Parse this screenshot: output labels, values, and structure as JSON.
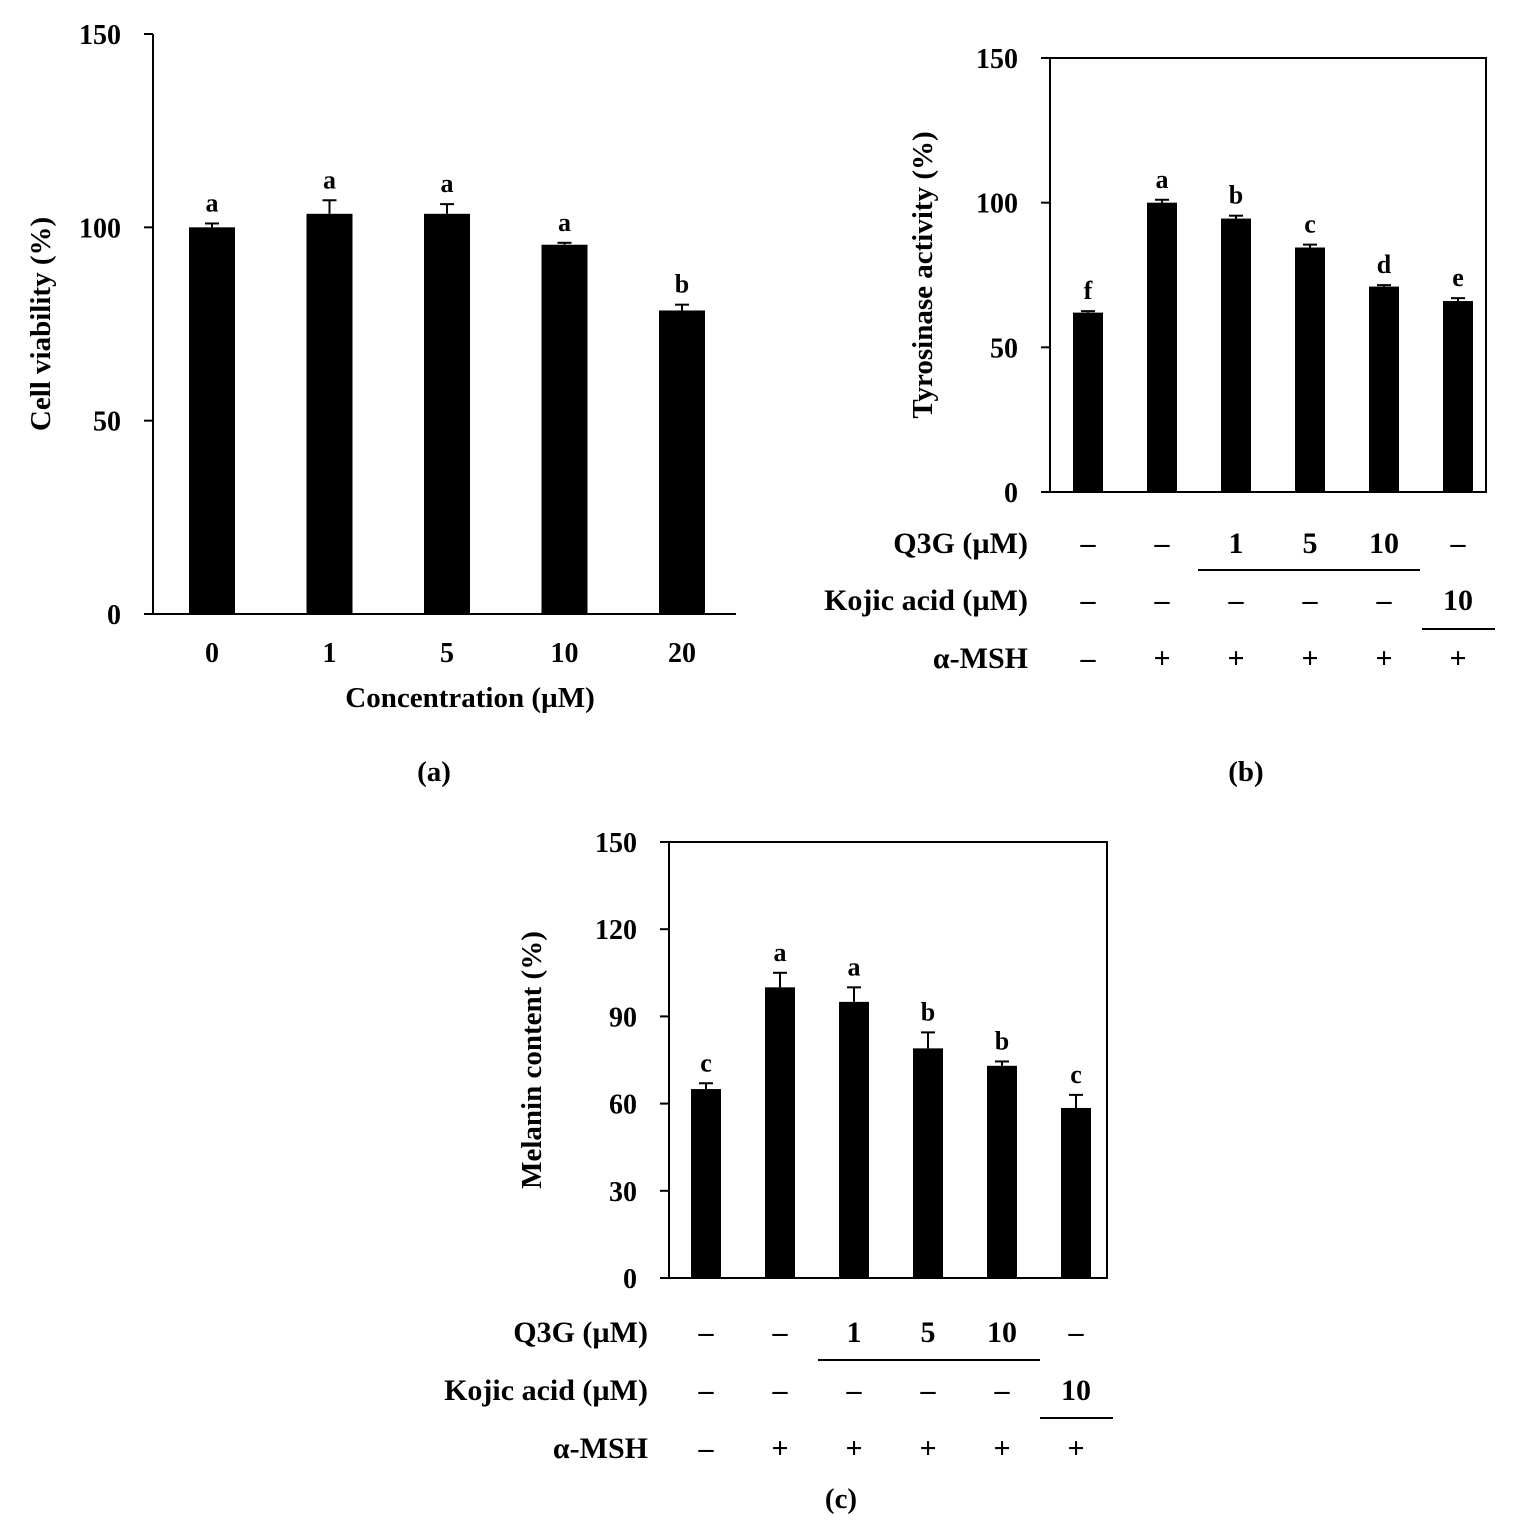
{
  "colors": {
    "bar": "#000000",
    "axis": "#000000",
    "background": "#ffffff"
  },
  "chart_data": [
    {
      "id": "a",
      "type": "bar",
      "panel_label": "(a)",
      "xlabel": "Concentration (µM)",
      "ylabel": "Cell viability (%)",
      "ylim": [
        0,
        150
      ],
      "yticks": [
        "0",
        "50",
        "100",
        "150"
      ],
      "categories": [
        "0",
        "1",
        "5",
        "10",
        "20"
      ],
      "values": [
        100,
        103.5,
        103.5,
        95.5,
        78.5
      ],
      "errors": [
        1,
        3.5,
        2.5,
        0.5,
        1.5
      ],
      "significance": [
        "a",
        "a",
        "a",
        "a",
        "b"
      ],
      "grid": false,
      "box": false
    },
    {
      "id": "b",
      "type": "bar",
      "panel_label": "(b)",
      "xlabel": "",
      "ylabel": "Tyrosinase activity (%)",
      "ylim": [
        0,
        150
      ],
      "yticks": [
        "0",
        "50",
        "100",
        "150"
      ],
      "values": [
        62,
        100,
        94.5,
        84.5,
        71,
        66
      ],
      "errors": [
        0.5,
        1,
        1,
        1,
        0.5,
        1
      ],
      "significance": [
        "f",
        "a",
        "b",
        "c",
        "d",
        "e"
      ],
      "grid": false,
      "box": true,
      "conditions": {
        "rows": [
          {
            "label": "Q3G (µM)",
            "cells": [
              "–",
              "–",
              "1",
              "5",
              "10",
              "–"
            ]
          },
          {
            "label": "Kojic acid (µM)",
            "cells": [
              "–",
              "–",
              "–",
              "–",
              "–",
              "10"
            ]
          },
          {
            "label": "α-MSH",
            "cells": [
              "–",
              "+",
              "+",
              "+",
              "+",
              "+"
            ]
          }
        ]
      }
    },
    {
      "id": "c",
      "type": "bar",
      "panel_label": "(c)",
      "xlabel": "",
      "ylabel": "Melanin content (%)",
      "ylim": [
        0,
        150
      ],
      "yticks": [
        "0",
        "30",
        "60",
        "90",
        "120",
        "150"
      ],
      "values": [
        65,
        100,
        95,
        79,
        73,
        58.5
      ],
      "errors": [
        2,
        5,
        5,
        5.5,
        1.5,
        4.5
      ],
      "significance": [
        "c",
        "a",
        "a",
        "b",
        "b",
        "c"
      ],
      "grid": false,
      "box": true,
      "conditions": {
        "rows": [
          {
            "label": "Q3G (µM)",
            "cells": [
              "–",
              "–",
              "1",
              "5",
              "10",
              "–"
            ]
          },
          {
            "label": "Kojic acid (µM)",
            "cells": [
              "–",
              "–",
              "–",
              "–",
              "–",
              "10"
            ]
          },
          {
            "label": "α-MSH",
            "cells": [
              "–",
              "+",
              "+",
              "+",
              "+",
              "+"
            ]
          }
        ]
      }
    }
  ]
}
